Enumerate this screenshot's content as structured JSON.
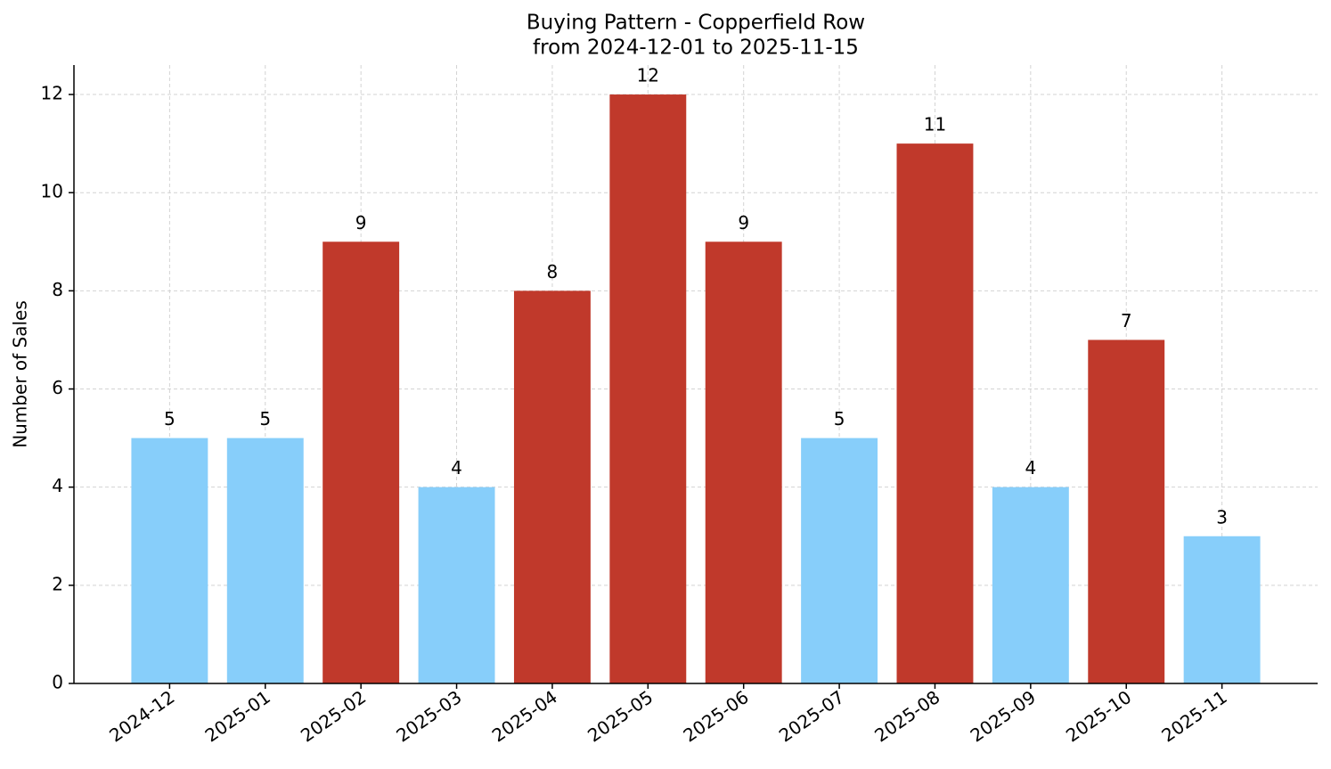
{
  "chart_data": {
    "type": "bar",
    "title": "Buying Pattern - Copperfield Row",
    "subtitle": "from 2024-12-01 to 2025-11-15",
    "y_label": "Number of Sales",
    "categories": [
      "2024-12",
      "2025-01",
      "2025-02",
      "2025-03",
      "2025-04",
      "2025-05",
      "2025-06",
      "2025-07",
      "2025-08",
      "2025-09",
      "2025-10",
      "2025-11"
    ],
    "values": [
      5,
      5,
      9,
      4,
      8,
      12,
      9,
      5,
      11,
      4,
      7,
      3
    ],
    "colors": [
      "#87cefa",
      "#87cefa",
      "#c0392b",
      "#87cefa",
      "#c0392b",
      "#c0392b",
      "#c0392b",
      "#87cefa",
      "#c0392b",
      "#87cefa",
      "#c0392b",
      "#87cefa"
    ],
    "ylim": [
      0,
      12.6
    ],
    "yticks": [
      0,
      2,
      4,
      6,
      8,
      10,
      12
    ],
    "grid": true
  }
}
